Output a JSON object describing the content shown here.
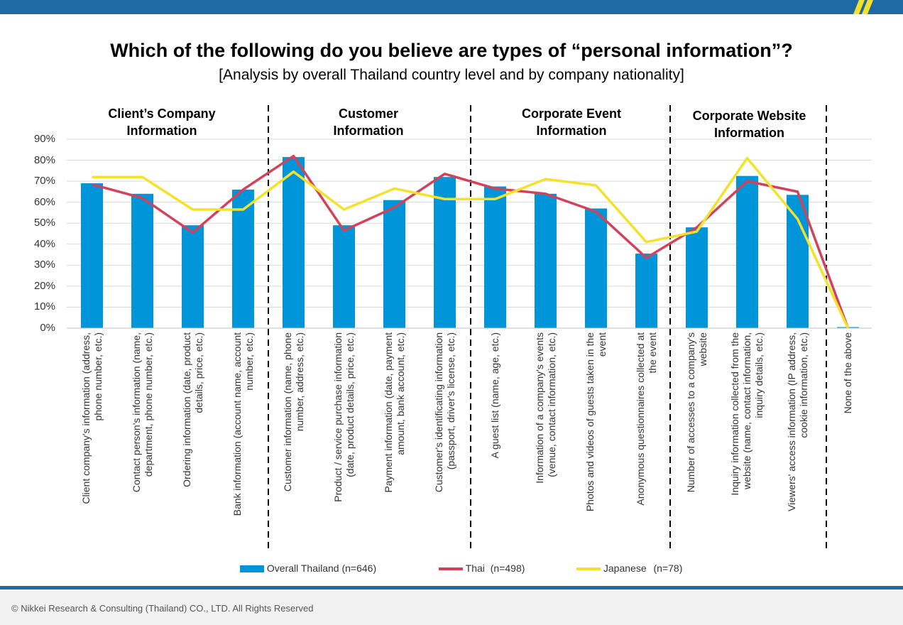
{
  "header": {
    "title": "Which of the following do you believe are types of “personal information”?",
    "subtitle": "[Analysis by overall Thailand country level and by company nationality]"
  },
  "groups": [
    {
      "name": "Client’s Company Information"
    },
    {
      "name": "Customer Information"
    },
    {
      "name": "Corporate Event Information"
    },
    {
      "name": "Corporate Website Information"
    }
  ],
  "legend": {
    "overall": {
      "label": "Overall Thailand",
      "n": "(n=646)"
    },
    "thai": {
      "label": "Thai",
      "n": "(n=498)"
    },
    "japanese": {
      "label": "Japanese",
      "n": "(n=78)"
    }
  },
  "footer": {
    "copyright": "© Nikkei Research & Consulting (Thailand) CO., LTD. All Rights Reserved"
  },
  "colors": {
    "overall": "#0095d9",
    "thai": "#d0435b",
    "japanese": "#f4e22a",
    "brand": "#1f6aa5"
  },
  "chart_data": {
    "type": "bar",
    "ylim": [
      0,
      90
    ],
    "yticks": [
      "0%",
      "10%",
      "20%",
      "30%",
      "40%",
      "50%",
      "60%",
      "70%",
      "80%",
      "90%"
    ],
    "grid": true,
    "legend_position": "bottom",
    "categories": [
      [
        "Client company's information (address,",
        "phone number, etc.)"
      ],
      [
        "Contact person's information (name,",
        "department, phone number, etc.)"
      ],
      [
        "Ordering information (date, product",
        "details, price, etc.)"
      ],
      [
        "Bank information (account name, account",
        "number, etc.)"
      ],
      [
        "Customer information (name, phone",
        "number, address, etc.)"
      ],
      [
        "Product / service purchase information",
        "(date, product details, price, etc.)"
      ],
      [
        "Payment information (date, payment",
        "amount, bank account, etc.)"
      ],
      [
        "Customer's identificating information",
        "(passport, driver's license, etc.)"
      ],
      [
        "A guest list (name, age, etc.)"
      ],
      [
        "Information of a company's events",
        "(venue, contact information, etc.)"
      ],
      [
        "Photos and videos of guests taken in the",
        "event"
      ],
      [
        "Anonymous questionnaires collected at",
        "the event"
      ],
      [
        "Number of accesses to a company's",
        "website"
      ],
      [
        "Inquiry information collected from the",
        "website (name, contact information,",
        "inquiry details, etc.)"
      ],
      [
        "Viewers' access information (IP address,",
        "cookie information, etc.)"
      ],
      [
        "None of the above"
      ]
    ],
    "series": [
      {
        "name": "Overall Thailand (n=646)",
        "type": "bar",
        "values": [
          69,
          64,
          49,
          66,
          81.5,
          49,
          61,
          72,
          67.5,
          64,
          57,
          35.5,
          48,
          72.5,
          63.5,
          0.5
        ]
      },
      {
        "name": "Thai (n=498)",
        "type": "line",
        "values": [
          68.5,
          62,
          45.5,
          66,
          82,
          46.5,
          57.5,
          73.5,
          66.5,
          64,
          55.5,
          33.5,
          48,
          70,
          65,
          0
        ]
      },
      {
        "name": "Japanese (n=78)",
        "type": "line",
        "values": [
          72,
          72,
          56.5,
          56.5,
          74.5,
          56.5,
          66.5,
          61.5,
          61.5,
          71,
          68,
          41,
          46,
          81,
          52,
          0
        ]
      }
    ]
  }
}
